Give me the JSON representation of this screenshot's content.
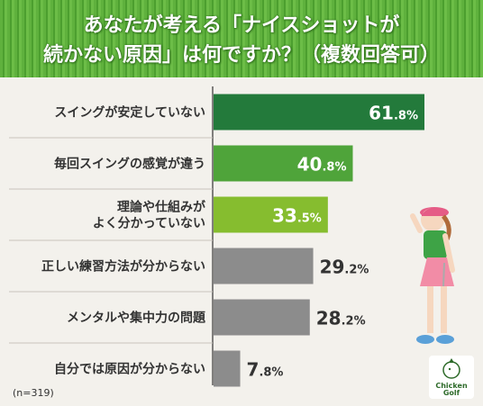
{
  "title": {
    "line1": "あなたが考える「ナイスショットが",
    "line2": "続かない原因」は何ですか？（複数回答可）"
  },
  "sample_note": "(n=319)",
  "logo": {
    "text_line1": "Chicken",
    "text_line2": "Golf"
  },
  "colors": {
    "dark_green": "#237a3b",
    "green": "#4fa43a",
    "light_green": "#86bd2f",
    "gray": "#8c8c8c",
    "background": "#f3f1ec",
    "header": "#5fb13d"
  },
  "chart_data": {
    "type": "bar",
    "orientation": "horizontal",
    "unit": "%",
    "xlim": [
      0,
      65
    ],
    "categories": [
      [
        "スイングが安定していない"
      ],
      [
        "毎回スイングの感覚が違う"
      ],
      [
        "理論や仕組みが",
        "よく分かっていない"
      ],
      [
        "正しい練習方法が分からない"
      ],
      [
        "メンタルや集中力の問題"
      ],
      [
        "自分では原因が分からない"
      ]
    ],
    "values": [
      61.8,
      40.8,
      33.5,
      29.2,
      28.2,
      7.8
    ],
    "bar_colors": [
      "#237a3b",
      "#4fa43a",
      "#86bd2f",
      "#8c8c8c",
      "#8c8c8c",
      "#8c8c8c"
    ],
    "label_inside": [
      true,
      true,
      true,
      false,
      false,
      false
    ]
  }
}
